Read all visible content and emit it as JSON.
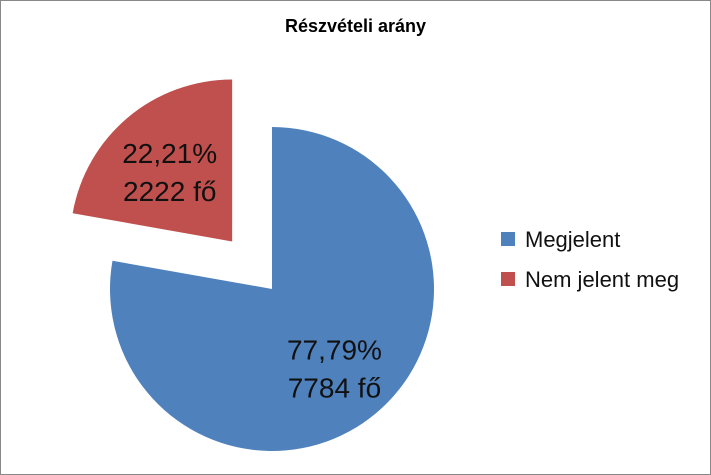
{
  "chart_data": {
    "type": "pie",
    "title": "Részvételi arány",
    "slices": [
      {
        "name": "Megjelent",
        "percent_label": "77,79%",
        "count_label": "7784 fő",
        "value": 77.79,
        "color": "#4F81BD"
      },
      {
        "name": "Nem jelent meg",
        "percent_label": "22,21%",
        "count_label": "2222 fő",
        "value": 22.21,
        "color": "#C0504D"
      }
    ],
    "legend": "right",
    "exploded": "Nem jelent meg"
  }
}
